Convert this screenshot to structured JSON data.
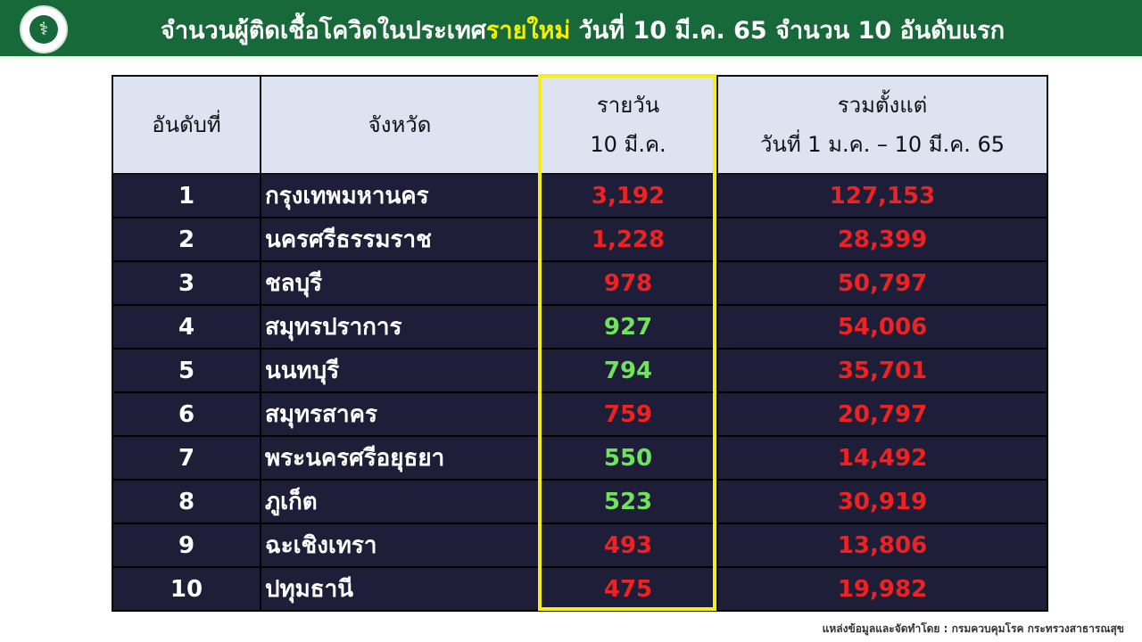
{
  "header": {
    "title_pre": "จำนวนผู้ติดเชื้อโควิดในประเทศ",
    "title_highlight": "รายใหม่",
    "title_post": " วันที่ 10 มี.ค. 65 จำนวน 10 อันดับแรก",
    "logo_icon": "caduceus-icon"
  },
  "table": {
    "headers": {
      "rank": "อันดับที่",
      "province": "จังหวัด",
      "daily_1": "รายวัน",
      "daily_2": "10 มี.ค.",
      "total_1": "รวมตั้งแต่",
      "total_2": "วันที่ 1 ม.ค. – 10 มี.ค. 65"
    },
    "rows": [
      {
        "rank": "1",
        "province": "กรุงเทพมหานคร",
        "daily": "3,192",
        "daily_color": "red",
        "total": "127,153"
      },
      {
        "rank": "2",
        "province": "นครศรีธรรมราช",
        "daily": "1,228",
        "daily_color": "red",
        "total": "28,399"
      },
      {
        "rank": "3",
        "province": "ชลบุรี",
        "daily": "978",
        "daily_color": "red",
        "total": "50,797"
      },
      {
        "rank": "4",
        "province": "สมุทรปราการ",
        "daily": "927",
        "daily_color": "green",
        "total": "54,006"
      },
      {
        "rank": "5",
        "province": "นนทบุรี",
        "daily": "794",
        "daily_color": "green",
        "total": "35,701"
      },
      {
        "rank": "6",
        "province": "สมุทรสาคร",
        "daily": "759",
        "daily_color": "red",
        "total": "20,797"
      },
      {
        "rank": "7",
        "province": "พระนครศรีอยุธยา",
        "daily": "550",
        "daily_color": "green",
        "total": "14,492"
      },
      {
        "rank": "8",
        "province": "ภูเก็ต",
        "daily": "523",
        "daily_color": "green",
        "total": "30,919"
      },
      {
        "rank": "9",
        "province": "ฉะเชิงเทรา",
        "daily": "493",
        "daily_color": "red",
        "total": "13,806"
      },
      {
        "rank": "10",
        "province": "ปทุมธานี",
        "daily": "475",
        "daily_color": "red",
        "total": "19,982"
      }
    ]
  },
  "colors": {
    "header_bg": "#17693a",
    "highlight": "#f6f000",
    "increase": "#ee2222",
    "decrease": "#6fe35a"
  },
  "source": "แหล่งข้อมูลและจัดทำโดย : กรมควบคุมโรค กระทรวงสาธารณสุข"
}
